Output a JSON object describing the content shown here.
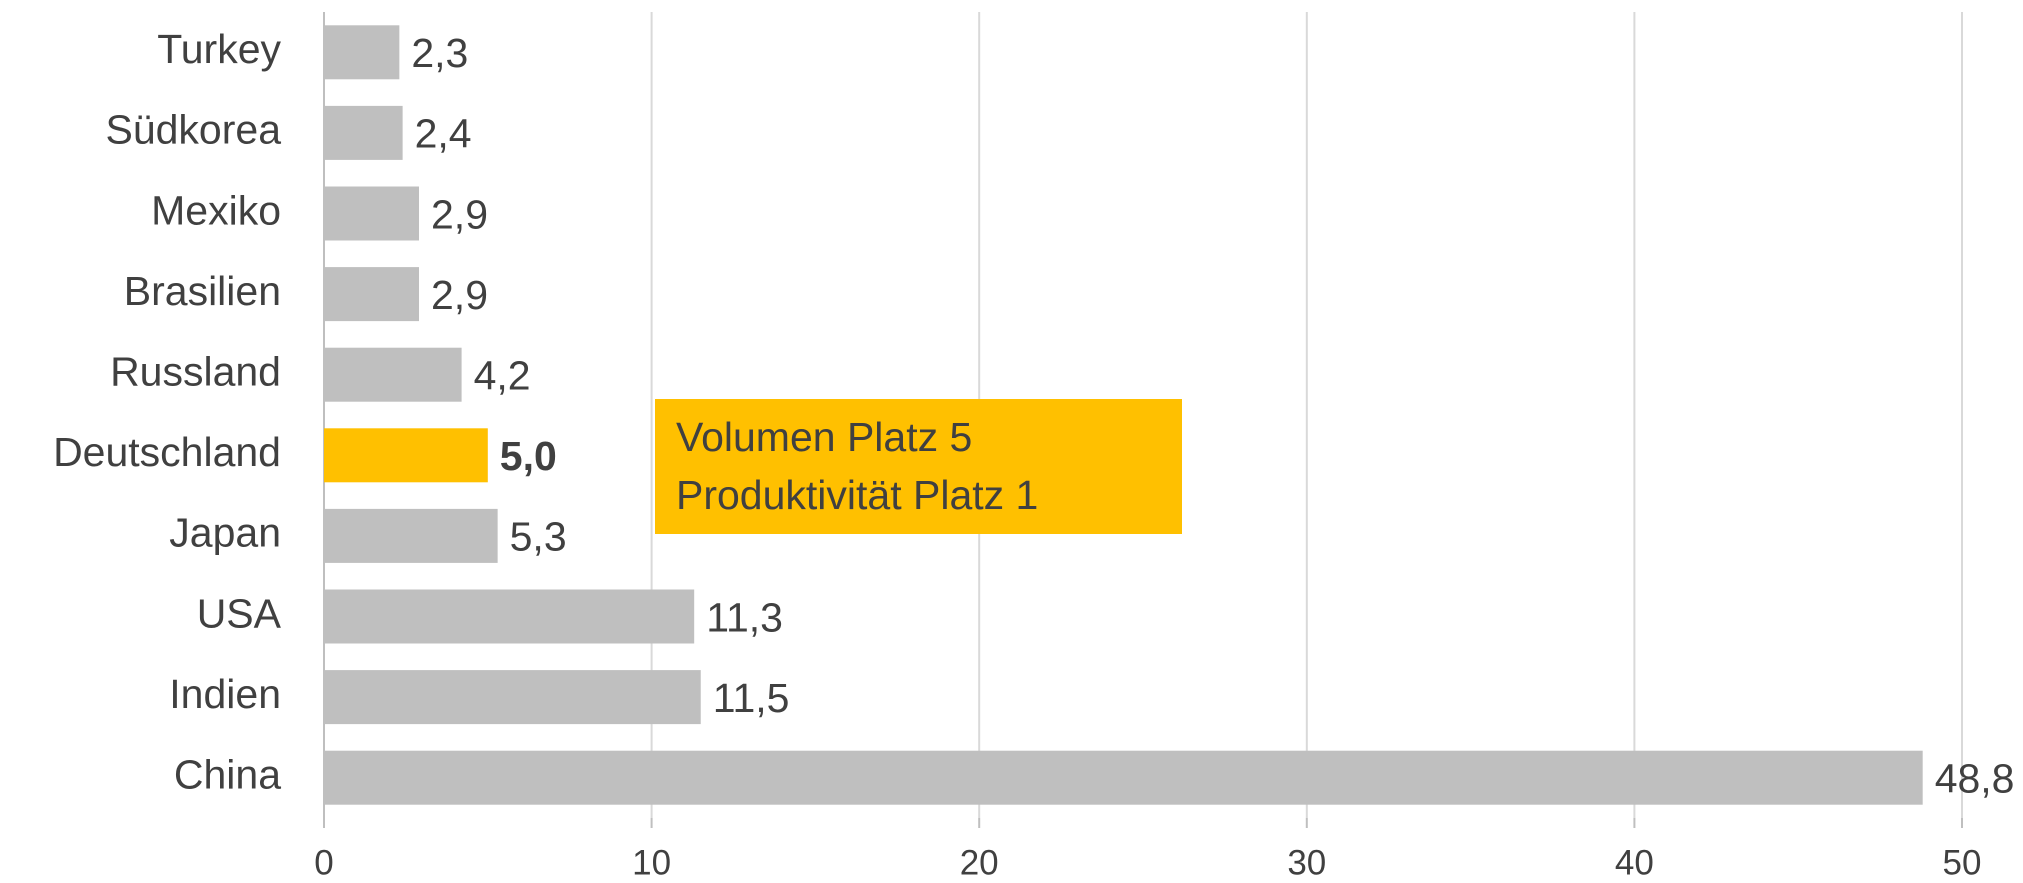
{
  "chart_data": {
    "type": "hbar",
    "categories": [
      "Turkey",
      "Südkorea",
      "Mexiko",
      "Brasilien",
      "Russland",
      "Deutschland",
      "Japan",
      "USA",
      "Indien",
      "China"
    ],
    "values": [
      2.3,
      2.4,
      2.9,
      2.9,
      4.2,
      5.0,
      5.3,
      11.3,
      11.5,
      48.8
    ],
    "value_labels": [
      "2,3",
      "2,4",
      "2,9",
      "2,9",
      "4,2",
      "5,0",
      "5,3",
      "11,3",
      "11,5",
      "48,8"
    ],
    "colors": [
      "#bfbfbf",
      "#bfbfbf",
      "#bfbfbf",
      "#bfbfbf",
      "#bfbfbf",
      "#ffc000",
      "#bfbfbf",
      "#bfbfbf",
      "#bfbfbf",
      "#bfbfbf"
    ],
    "value_label_weights": [
      "normal",
      "normal",
      "normal",
      "normal",
      "normal",
      "bold",
      "normal",
      "normal",
      "normal",
      "normal"
    ],
    "annotation": {
      "lines": [
        "Volumen Platz 5",
        "Produktivität Platz 1"
      ],
      "color": "#ffc000"
    },
    "xlim": [
      0,
      50
    ],
    "xticks": [
      0,
      10,
      20,
      30,
      40,
      50
    ],
    "grid": true
  }
}
